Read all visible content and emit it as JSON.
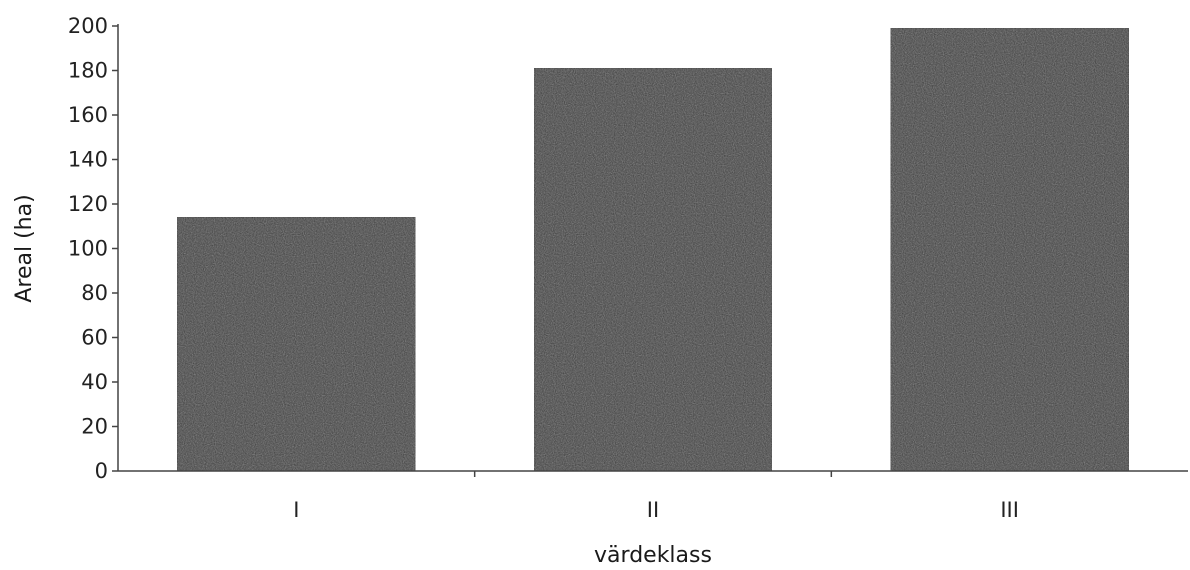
{
  "chart_data": {
    "type": "bar",
    "categories": [
      "I",
      "II",
      "III"
    ],
    "values": [
      114,
      181,
      199
    ],
    "title": "",
    "xlabel": "värdeklass",
    "ylabel": "Areal (ha)",
    "ylim": [
      0,
      200
    ],
    "yticks": [
      0,
      20,
      40,
      60,
      80,
      100,
      120,
      140,
      160,
      180,
      200
    ],
    "grid": false,
    "legend": "none",
    "colors": {
      "bar": "#3b3b3b",
      "axis": "#444444",
      "text": "#222222"
    }
  }
}
